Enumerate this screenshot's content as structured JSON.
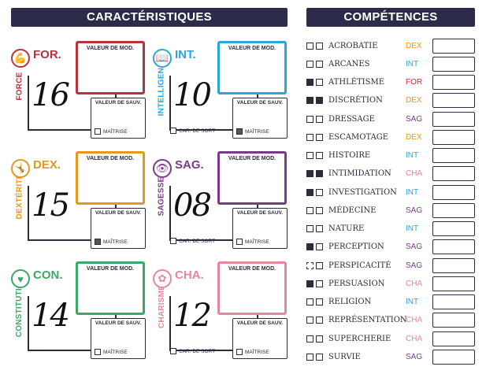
{
  "headers": {
    "left": "CARACTÉRISTIQUES",
    "right": "COMPÉTENCES"
  },
  "labels": {
    "mod": "VALEUR DE MOD.",
    "sav": "VALEUR DE SAUV.",
    "mastery": "MAÎTRISE",
    "spell": "CAR. DE SORT"
  },
  "stats": [
    {
      "abbr": "FOR.",
      "name": "FORCE",
      "score": "16",
      "color": "#b8323e",
      "icon": "flexed-arm-icon",
      "glyph": "💪",
      "mastery": false,
      "spell": false
    },
    {
      "abbr": "INT.",
      "name": "INTELLIGENCE",
      "score": "10",
      "color": "#2aa6d8",
      "icon": "book-icon",
      "glyph": "📖",
      "mastery": true,
      "spell": true
    },
    {
      "abbr": "DEX.",
      "name": "DEXTÉRITÉ",
      "score": "15",
      "color": "#e8961e",
      "icon": "acrobat-icon",
      "glyph": "🤸",
      "mastery": true,
      "spell": false
    },
    {
      "abbr": "SAG.",
      "name": "SAGESSE",
      "score": "08",
      "color": "#7a3a8c",
      "icon": "eye-icon",
      "glyph": "👁",
      "mastery": false,
      "spell": true
    },
    {
      "abbr": "CON.",
      "name": "CONSTITUTION",
      "score": "14",
      "color": "#3aa86a",
      "icon": "heart-icon",
      "glyph": "♥",
      "mastery": false,
      "spell": false
    },
    {
      "abbr": "CHA.",
      "name": "CHARISME",
      "score": "12",
      "color": "#e8869c",
      "icon": "lotus-icon",
      "glyph": "✿",
      "mastery": false,
      "spell": true
    }
  ],
  "attr_colors": {
    "DEX": "#e8961e",
    "INT": "#2aa6d8",
    "FOR": "#b8323e",
    "SAG": "#7a3a8c",
    "CHA": "#e8869c"
  },
  "skills": [
    {
      "name": "ACROBATIE",
      "attr": "DEX",
      "b1": "empty",
      "b2": "empty"
    },
    {
      "name": "ARCANES",
      "attr": "INT",
      "b1": "empty",
      "b2": "empty"
    },
    {
      "name": "ATHLÉTISME",
      "attr": "FOR",
      "b1": "filled",
      "b2": "empty"
    },
    {
      "name": "DISCRÉTION",
      "attr": "DEX",
      "b1": "filled",
      "b2": "filled"
    },
    {
      "name": "DRESSAGE",
      "attr": "SAG",
      "b1": "empty",
      "b2": "empty"
    },
    {
      "name": "ESCAMOTAGE",
      "attr": "DEX",
      "b1": "empty",
      "b2": "empty"
    },
    {
      "name": "HISTOIRE",
      "attr": "INT",
      "b1": "empty",
      "b2": "empty"
    },
    {
      "name": "INTIMIDATION",
      "attr": "CHA",
      "b1": "filled",
      "b2": "filled"
    },
    {
      "name": "INVESTIGATION",
      "attr": "INT",
      "b1": "filled",
      "b2": "empty"
    },
    {
      "name": "MÉDECINE",
      "attr": "SAG",
      "b1": "empty",
      "b2": "empty"
    },
    {
      "name": "NATURE",
      "attr": "INT",
      "b1": "empty",
      "b2": "empty"
    },
    {
      "name": "PERCEPTION",
      "attr": "SAG",
      "b1": "filled",
      "b2": "empty"
    },
    {
      "name": "PERSPICACITÉ",
      "attr": "SAG",
      "b1": "dotted",
      "b2": "empty"
    },
    {
      "name": "PERSUASION",
      "attr": "CHA",
      "b1": "filled",
      "b2": "empty"
    },
    {
      "name": "RELIGION",
      "attr": "INT",
      "b1": "empty",
      "b2": "empty"
    },
    {
      "name": "REPRÉSENTATION",
      "attr": "CHA",
      "b1": "empty",
      "b2": "empty"
    },
    {
      "name": "SUPERCHERIE",
      "attr": "CHA",
      "b1": "empty",
      "b2": "empty"
    },
    {
      "name": "SURVIE",
      "attr": "SAG",
      "b1": "empty",
      "b2": "empty"
    }
  ]
}
